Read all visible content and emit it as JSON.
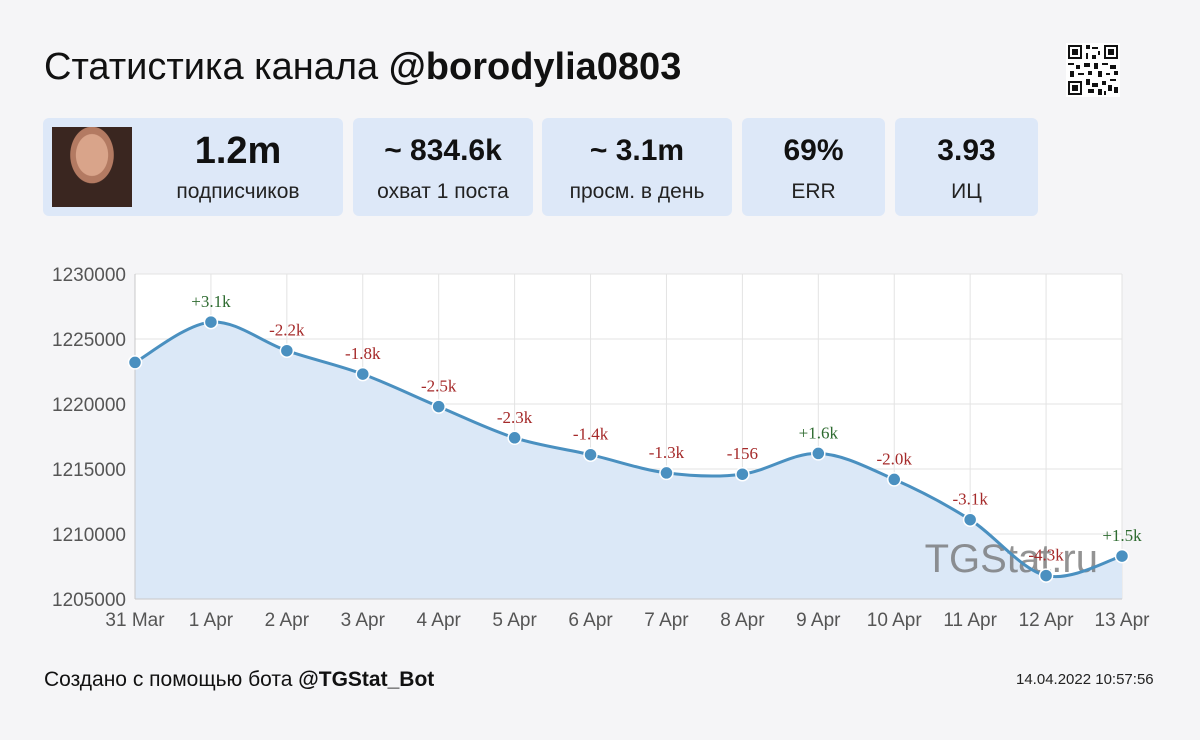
{
  "header": {
    "title_prefix": "Статистика канала",
    "channel": "@borodylia0803"
  },
  "stats": {
    "subscribers_value": "1.2m",
    "subscribers_label": "подписчиков",
    "reach_value": "~ 834.6k",
    "reach_label": "охват 1 поста",
    "views_value": "~ 3.1m",
    "views_label": "просм. в день",
    "err_value": "69%",
    "err_label": "ERR",
    "ic_value": "3.93",
    "ic_label": "ИЦ"
  },
  "chart_data": {
    "type": "area",
    "categories": [
      "31 Mar",
      "1 Apr",
      "2 Apr",
      "3 Apr",
      "4 Apr",
      "5 Apr",
      "6 Apr",
      "7 Apr",
      "8 Apr",
      "9 Apr",
      "10 Apr",
      "11 Apr",
      "12 Apr",
      "13 Apr"
    ],
    "values": [
      1223200,
      1226300,
      1224100,
      1222300,
      1219800,
      1217400,
      1216100,
      1214700,
      1214600,
      1216200,
      1214200,
      1211100,
      1206800,
      1208300
    ],
    "data_labels": [
      "",
      "+3.1k",
      "-2.2k",
      "-1.8k",
      "-2.5k",
      "-2.3k",
      "-1.4k",
      "-1.3k",
      "-156",
      "+1.6k",
      "-2.0k",
      "-3.1k",
      "-4.3k",
      "+1.5k"
    ],
    "yticks": [
      "1230000",
      "1225000",
      "1220000",
      "1215000",
      "1210000",
      "1205000"
    ],
    "ylim": [
      1205000,
      1230000
    ],
    "grid": true,
    "colors": {
      "line": "#4a90c0",
      "fill": "#dbe8f7",
      "positive": "#2e6b30",
      "negative": "#a52a2a"
    },
    "watermark": "TGStat.ru"
  },
  "footer": {
    "created_prefix": "Создано с помощью бота",
    "bot": "@TGStat_Bot",
    "timestamp": "14.04.2022 10:57:56"
  }
}
